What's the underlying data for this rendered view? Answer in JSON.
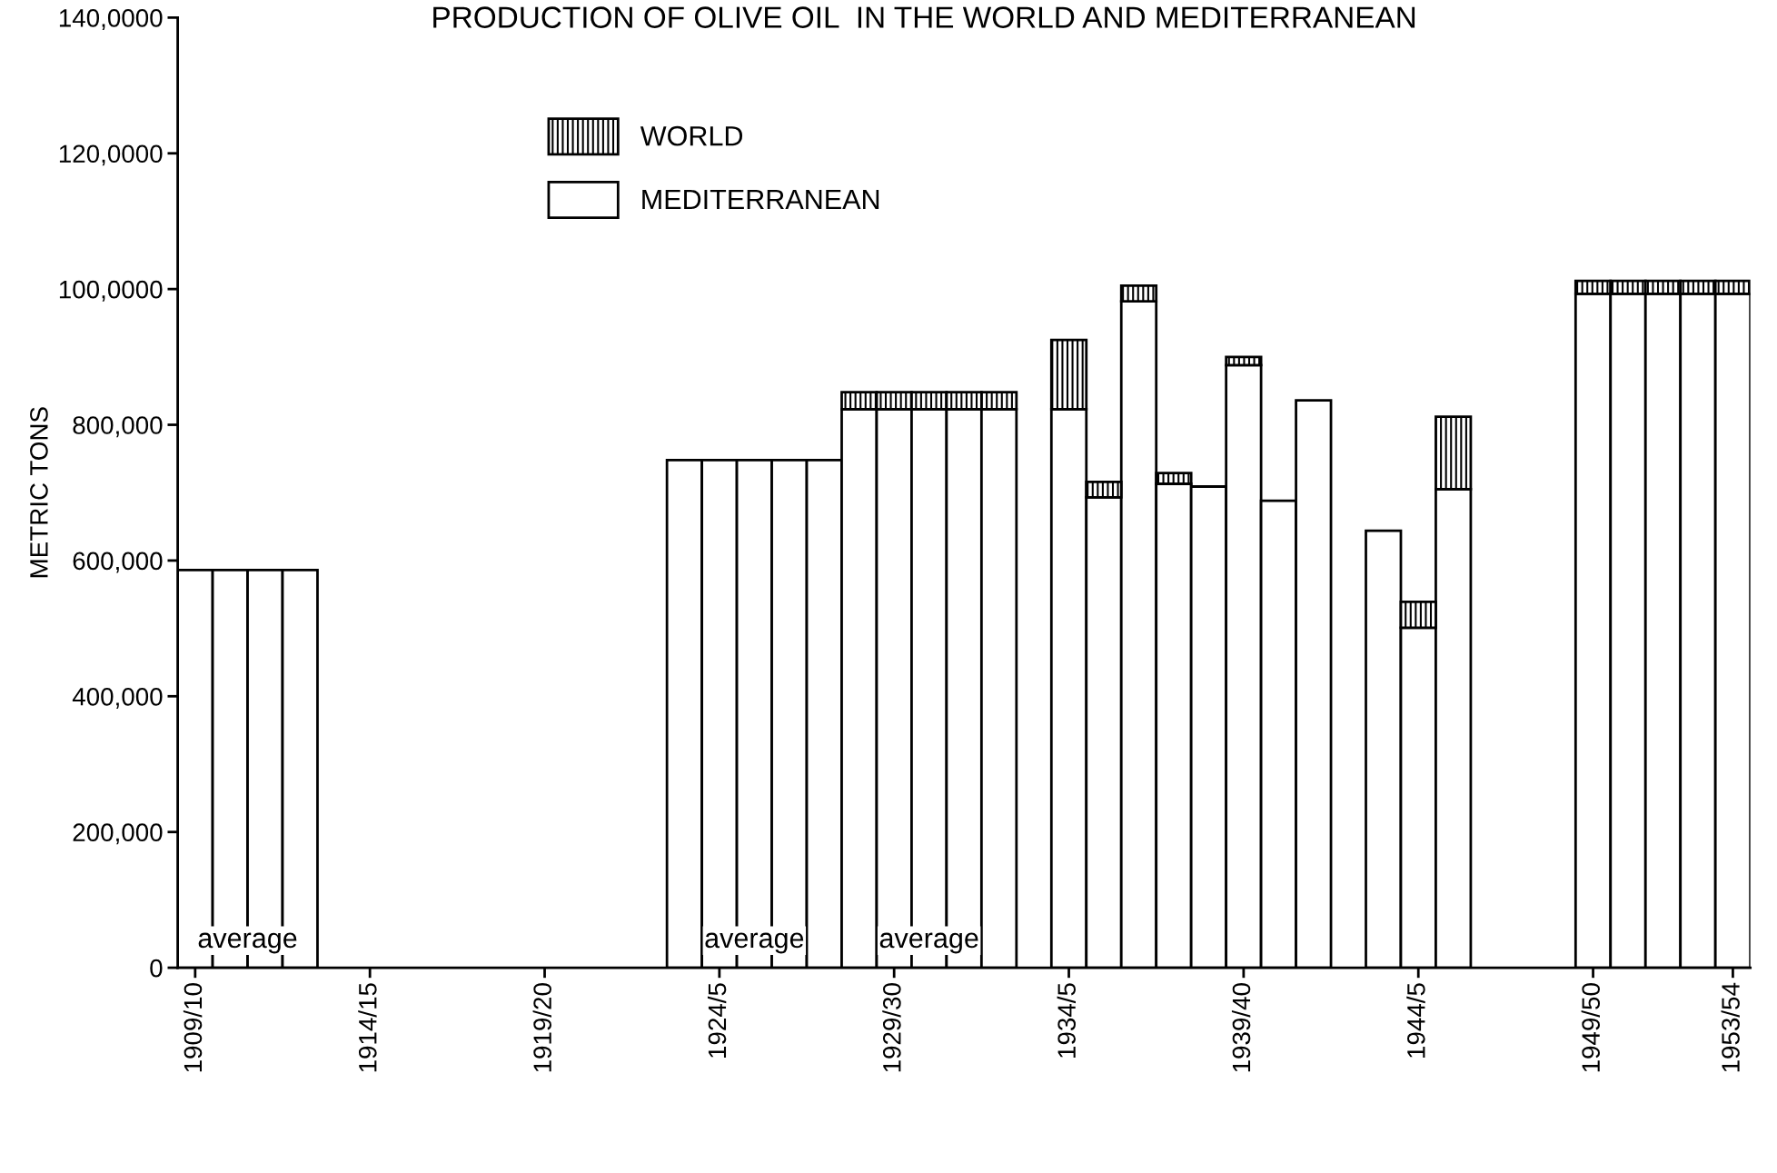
{
  "chart_data": {
    "type": "bar",
    "stacked": true,
    "title": "PRODUCTION OF OLIVE OIL  IN THE WORLD AND MEDITERRANEAN",
    "ylabel": "METRIC TONS",
    "categories": [
      "1909/10",
      null,
      null,
      null,
      null,
      "1914/15",
      null,
      null,
      null,
      null,
      "1919/20",
      null,
      null,
      null,
      null,
      "1924/5",
      null,
      null,
      null,
      null,
      "1929/30",
      null,
      null,
      null,
      null,
      "1934/5",
      null,
      null,
      null,
      null,
      "1939/40",
      null,
      null,
      null,
      null,
      "1944/5",
      null,
      null,
      null,
      null,
      "1949/50",
      null,
      null,
      null,
      "1953/54"
    ],
    "series": [
      {
        "name": "MEDITERRANEAN",
        "color": "#ffffff",
        "values": [
          586000,
          586000,
          586000,
          586000,
          null,
          null,
          null,
          null,
          null,
          null,
          null,
          null,
          null,
          null,
          748000,
          748000,
          748000,
          748000,
          748000,
          823000,
          823000,
          823000,
          823000,
          823000,
          null,
          823000,
          693000,
          982000,
          713000,
          709000,
          888000,
          688000,
          836000,
          null,
          644000,
          501000,
          705000,
          null,
          null,
          null,
          993000,
          993000,
          993000,
          993000,
          993000
        ]
      },
      {
        "name": "WORLD",
        "color": "#000000",
        "values": [
          null,
          null,
          null,
          null,
          null,
          null,
          null,
          null,
          null,
          null,
          null,
          null,
          null,
          null,
          null,
          null,
          null,
          null,
          null,
          25000,
          25000,
          25000,
          25000,
          25000,
          null,
          102000,
          23000,
          23000,
          16000,
          null,
          12000,
          null,
          null,
          null,
          null,
          38000,
          107000,
          null,
          null,
          null,
          19000,
          19000,
          19000,
          19000,
          19000
        ]
      }
    ],
    "ylim": [
      0,
      1400000
    ],
    "yticks": [
      {
        "value": 0,
        "label": "0"
      },
      {
        "value": 200000,
        "label": "200,000"
      },
      {
        "value": 400000,
        "label": "400,000"
      },
      {
        "value": 600000,
        "label": "600,000"
      },
      {
        "value": 800000,
        "label": "800,000"
      },
      {
        "value": 1000000,
        "label": "100,0000"
      },
      {
        "value": 1200000,
        "label": "120,0000"
      },
      {
        "value": 1400000,
        "label": "140,0000"
      }
    ],
    "annotations": [
      "average",
      "average",
      "average"
    ],
    "legend": "top left",
    "grid": false
  }
}
